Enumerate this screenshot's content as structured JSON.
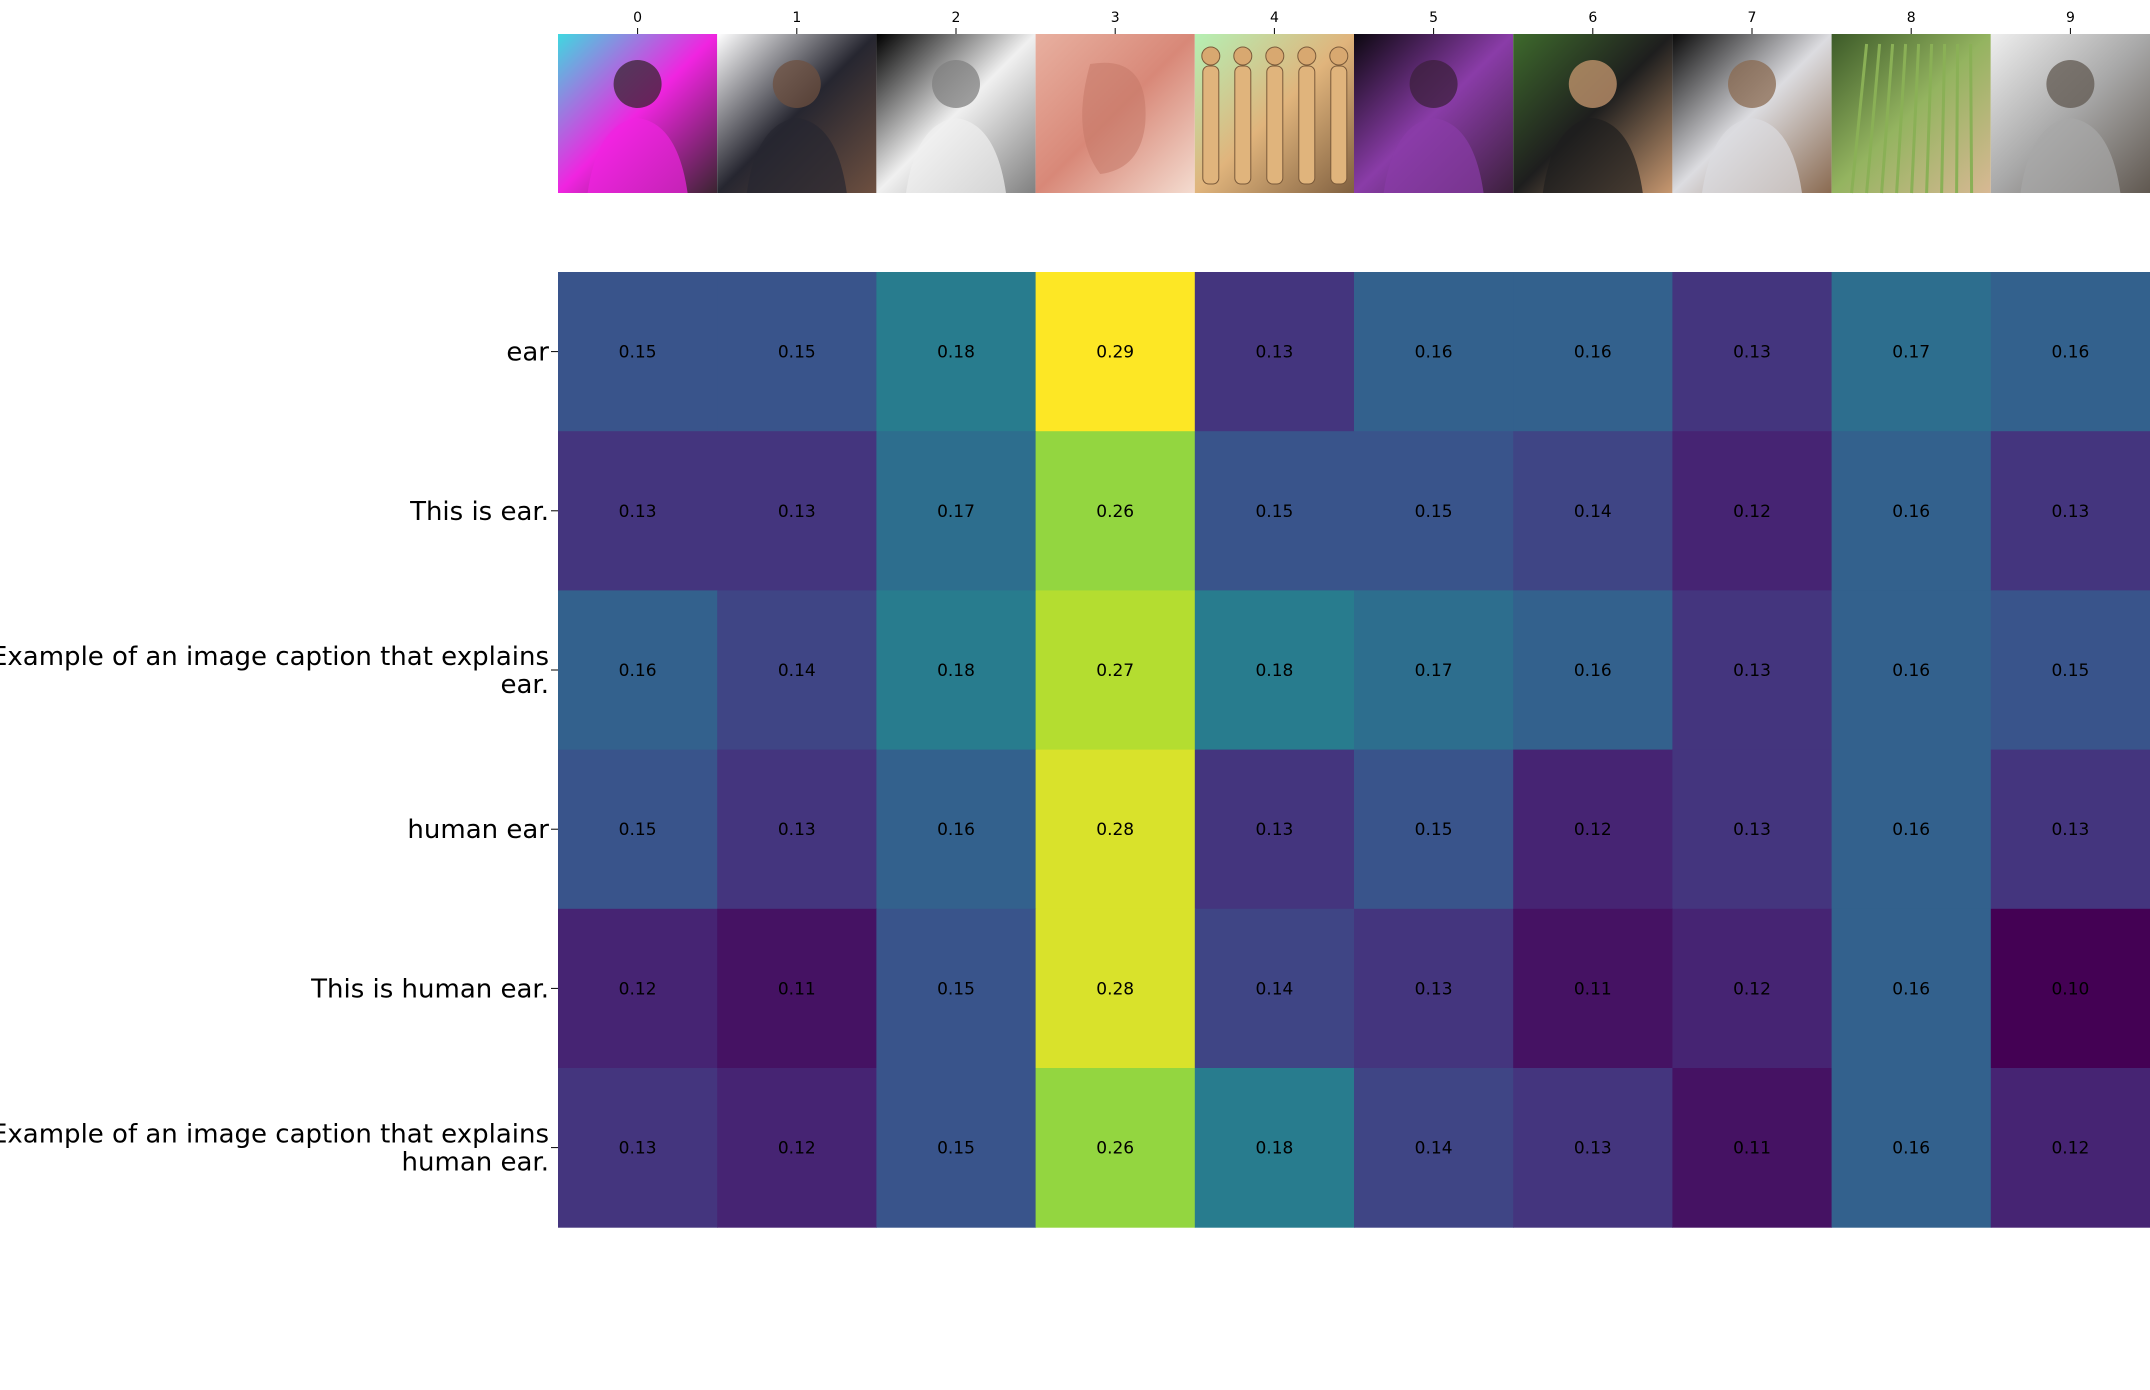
{
  "chart_data": {
    "type": "heatmap",
    "title": "",
    "xlabel": "",
    "ylabel": "",
    "colormap": "viridis",
    "value_range": [
      0.1,
      0.29
    ],
    "x": [
      "0",
      "1",
      "2",
      "3",
      "4",
      "5",
      "6",
      "7",
      "8",
      "9"
    ],
    "y": [
      [
        "ear"
      ],
      [
        "This is ear."
      ],
      [
        "Example of an image caption that explains",
        "ear."
      ],
      [
        "human ear"
      ],
      [
        "This is human ear."
      ],
      [
        "Example of an image caption that explains",
        "human ear."
      ]
    ],
    "values": [
      [
        0.15,
        0.15,
        0.18,
        0.29,
        0.13,
        0.16,
        0.16,
        0.13,
        0.17,
        0.16
      ],
      [
        0.13,
        0.13,
        0.17,
        0.26,
        0.15,
        0.15,
        0.14,
        0.12,
        0.16,
        0.13
      ],
      [
        0.16,
        0.14,
        0.18,
        0.27,
        0.18,
        0.17,
        0.16,
        0.13,
        0.16,
        0.15
      ],
      [
        0.15,
        0.13,
        0.16,
        0.28,
        0.13,
        0.15,
        0.12,
        0.13,
        0.16,
        0.13
      ],
      [
        0.12,
        0.11,
        0.15,
        0.28,
        0.14,
        0.13,
        0.11,
        0.12,
        0.16,
        0.1
      ],
      [
        0.13,
        0.12,
        0.15,
        0.26,
        0.18,
        0.14,
        0.13,
        0.11,
        0.16,
        0.12
      ]
    ],
    "thumbnails": [
      {
        "index": 0,
        "subject": "rapper-performing-on-stage",
        "colors": [
          "#3fd8e0",
          "#f024e0",
          "#3a2430"
        ]
      },
      {
        "index": 1,
        "subject": "man-in-cap-and-white-tshirt",
        "colors": [
          "#ffffff",
          "#262630",
          "#6e5040"
        ]
      },
      {
        "index": 2,
        "subject": "singer-with-microphone-black-and-white",
        "colors": [
          "#000000",
          "#f0f0f0",
          "#808080"
        ]
      },
      {
        "index": 3,
        "subject": "close-up-of-human-ear",
        "colors": [
          "#e8b0a0",
          "#d88878",
          "#f4dcd0"
        ]
      },
      {
        "index": 4,
        "subject": "human-body-proportion-figures",
        "colors": [
          "#b4f0b4",
          "#e0b47c",
          "#806040"
        ]
      },
      {
        "index": 5,
        "subject": "dark-concert-crowd-purple-lights",
        "colors": [
          "#0c0810",
          "#8a3ca8",
          "#3c203c"
        ]
      },
      {
        "index": 6,
        "subject": "man-with-glasses-sonic-boom-tshirt",
        "colors": [
          "#3e6a2c",
          "#1e1e1e",
          "#c89870"
        ]
      },
      {
        "index": 7,
        "subject": "guitarist-singing-into-microphone",
        "colors": [
          "#0a0a0a",
          "#dcdce0",
          "#8a6a50"
        ]
      },
      {
        "index": 8,
        "subject": "hand-holding-wheat-grass",
        "colors": [
          "#3c5a28",
          "#94b460",
          "#d8b894"
        ]
      },
      {
        "index": 9,
        "subject": "older-man-with-glasses-speaking",
        "colors": [
          "#eeeeee",
          "#a8a8a8",
          "#605850"
        ]
      }
    ]
  }
}
